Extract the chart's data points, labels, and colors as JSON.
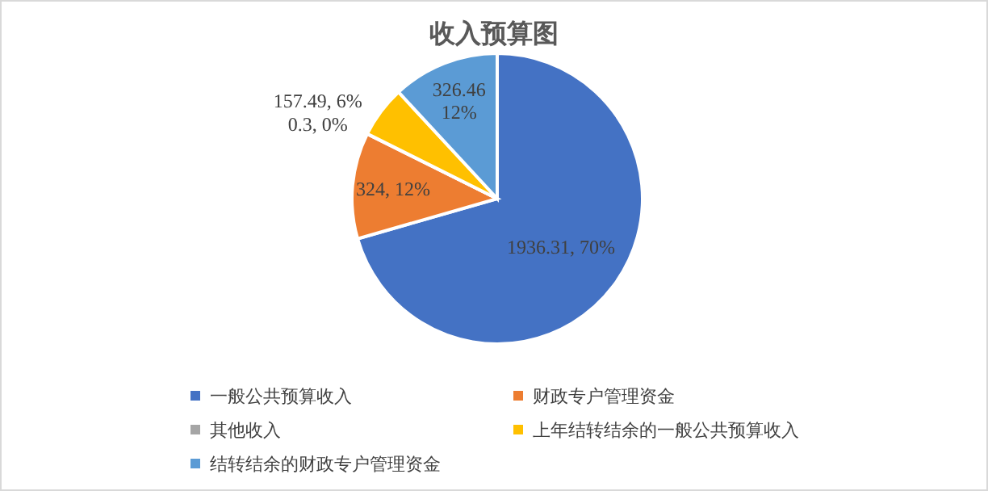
{
  "chart_data": {
    "type": "pie",
    "title": "收入预算图",
    "categories": [
      "一般公共预算收入",
      "财政专户管理资金",
      "其他收入",
      "上年结转结余的一般公共预算收入",
      "结转结余的财政专户管理资金"
    ],
    "values": [
      1936.31,
      324,
      0.3,
      157.49,
      326.46
    ],
    "colors": [
      "#4472c4",
      "#ed7d31",
      "#a5a5a5",
      "#ffc000",
      "#5b9bd5"
    ],
    "value_labels": [
      "1936.31, 70%",
      "324, 12%",
      "0.3, 0%",
      "157.49, 6%",
      "326.46\n12%"
    ],
    "legend": "bottom"
  }
}
